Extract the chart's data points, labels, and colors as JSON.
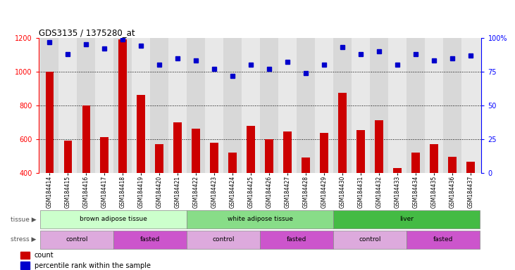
{
  "title": "GDS3135 / 1375280_at",
  "samples": [
    "GSM184414",
    "GSM184415",
    "GSM184416",
    "GSM184417",
    "GSM184418",
    "GSM184419",
    "GSM184420",
    "GSM184421",
    "GSM184422",
    "GSM184423",
    "GSM184424",
    "GSM184425",
    "GSM184426",
    "GSM184427",
    "GSM184428",
    "GSM184429",
    "GSM184430",
    "GSM184431",
    "GSM184432",
    "GSM184433",
    "GSM184434",
    "GSM184435",
    "GSM184436",
    "GSM184437"
  ],
  "counts": [
    1000,
    590,
    800,
    610,
    1190,
    860,
    570,
    700,
    660,
    580,
    520,
    680,
    600,
    645,
    490,
    635,
    875,
    655,
    710,
    430,
    520,
    570,
    495,
    465
  ],
  "percentile": [
    97,
    88,
    95,
    92,
    99,
    94,
    80,
    85,
    83,
    77,
    72,
    80,
    77,
    82,
    74,
    80,
    93,
    88,
    90,
    80,
    88,
    83,
    85,
    87
  ],
  "ylim_left": [
    400,
    1200
  ],
  "ylim_right": [
    0,
    100
  ],
  "yticks_left": [
    400,
    600,
    800,
    1000,
    1200
  ],
  "yticks_right": [
    0,
    25,
    50,
    75,
    100
  ],
  "bar_color": "#cc0000",
  "dot_color": "#0000cc",
  "grid_color": "#000000",
  "tissue_groups": [
    {
      "label": "brown adipose tissue",
      "start": 0,
      "end": 8,
      "color": "#ccffcc"
    },
    {
      "label": "white adipose tissue",
      "start": 8,
      "end": 16,
      "color": "#88dd88"
    },
    {
      "label": "liver",
      "start": 16,
      "end": 24,
      "color": "#44bb44"
    }
  ],
  "stress_groups": [
    {
      "label": "control",
      "start": 0,
      "end": 4,
      "color": "#ddaadd"
    },
    {
      "label": "fasted",
      "start": 4,
      "end": 8,
      "color": "#cc55cc"
    },
    {
      "label": "control",
      "start": 8,
      "end": 12,
      "color": "#ddaadd"
    },
    {
      "label": "fasted",
      "start": 12,
      "end": 16,
      "color": "#cc55cc"
    },
    {
      "label": "control",
      "start": 16,
      "end": 20,
      "color": "#ddaadd"
    },
    {
      "label": "fasted",
      "start": 20,
      "end": 24,
      "color": "#cc55cc"
    }
  ],
  "bg_color": "#e8e8e8",
  "legend_count_label": "count",
  "legend_pct_label": "percentile rank within the sample",
  "tissue_label": "tissue",
  "stress_label": "stress"
}
